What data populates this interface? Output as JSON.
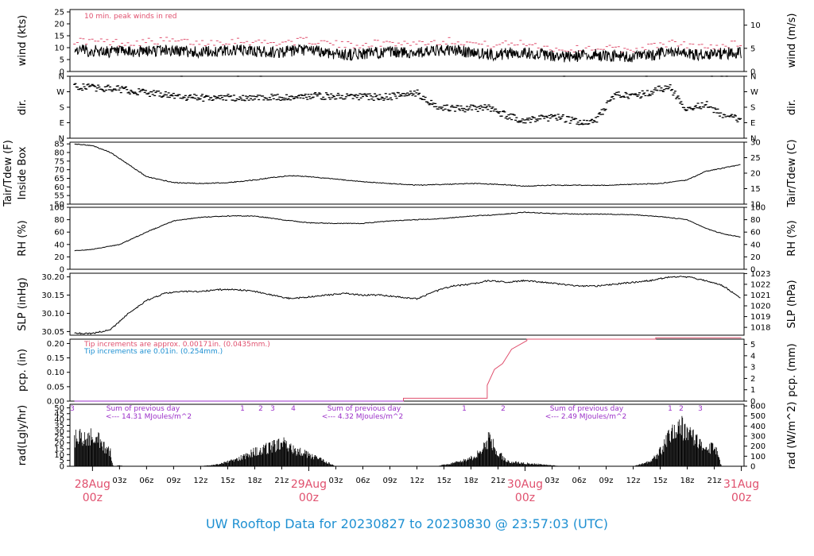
{
  "title": "UW Rooftop Data for 20230827  to  20230830 @ 23:57:03  (UTC)",
  "colors": {
    "line": "#000000",
    "peak": "#e0506e",
    "tip_alt": "#1e90d2",
    "rad_note": "#9b30c8",
    "date": "#e0506e",
    "title": "#1e90d2"
  },
  "x_axis": {
    "hour_labels": [
      "03z",
      "06z",
      "09z",
      "12z",
      "15z",
      "18z",
      "21z",
      "03z",
      "06z",
      "09z",
      "12z",
      "15z",
      "18z",
      "21z",
      "03z",
      "06z",
      "09z",
      "12z",
      "15z",
      "18z",
      "21z"
    ],
    "hour_offsets": [
      3,
      6,
      9,
      12,
      15,
      18,
      21,
      27,
      30,
      33,
      36,
      39,
      42,
      45,
      51,
      54,
      57,
      60,
      63,
      66,
      69
    ],
    "day_labels": [
      {
        "date": "28Aug",
        "time": "00z",
        "offset": 0
      },
      {
        "date": "29Aug",
        "time": "00z",
        "offset": 24
      },
      {
        "date": "30Aug",
        "time": "00z",
        "offset": 48
      },
      {
        "date": "31Aug",
        "time": "00z",
        "offset": 72
      }
    ]
  },
  "panels": {
    "wind": {
      "left_label": "wind (kts)",
      "right_label": "wind (m/s)",
      "left_ticks": [
        "0",
        "5",
        "10",
        "15",
        "20",
        "25"
      ],
      "left_range": [
        0,
        26
      ],
      "right_ticks": [
        "0",
        "5",
        "10"
      ],
      "note": "10 min. peak winds in red"
    },
    "dir": {
      "left_label": "dir.",
      "right_label": "dir.",
      "ticks": [
        "N",
        "E",
        "S",
        "W",
        "N"
      ]
    },
    "temp": {
      "left_label_1": "Tair/Tdew (F)",
      "left_label_2": "Inside Box",
      "right_label": "Tair/Tdew (C)",
      "left_ticks": [
        "50",
        "55",
        "60",
        "65",
        "70",
        "75",
        "80",
        "85"
      ],
      "left_range": [
        50,
        86
      ],
      "right_ticks": [
        "10",
        "15",
        "20",
        "25",
        "30"
      ]
    },
    "rh": {
      "left_label": "RH (%)",
      "right_label": "RH (%)",
      "ticks": [
        "0",
        "20",
        "40",
        "60",
        "80",
        "100"
      ],
      "range": [
        0,
        100
      ]
    },
    "slp": {
      "left_label": "SLP (inHg)",
      "right_label": "SLP (hPa)",
      "left_ticks": [
        "30.05",
        "30.10",
        "30.15",
        "30.20"
      ],
      "left_range": [
        30.04,
        30.21
      ],
      "right_ticks": [
        "1018",
        "1019",
        "1020",
        "1021",
        "1022",
        "1023"
      ]
    },
    "pcp": {
      "left_label": "pcp. (in)",
      "right_label": "pcp. (mm)",
      "left_ticks": [
        "0.00",
        "0.05",
        "0.10",
        "0.15",
        "0.20"
      ],
      "left_range": [
        0,
        0.215
      ],
      "right_ticks": [
        "0",
        "1",
        "2",
        "3",
        "4",
        "5"
      ],
      "note_1": "Tip increments are approx. 0.00171in. (0.0435mm.)",
      "note_2": "Tip increments are 0.01in. (0.254mm.)"
    },
    "rad": {
      "left_label": "rad(Lgly/hr)",
      "right_label": "rad (W/m^2)",
      "left_ticks": [
        "0",
        "5",
        "10",
        "15",
        "20",
        "25",
        "30",
        "35",
        "40",
        "45",
        "50"
      ],
      "left_range": [
        0,
        53
      ],
      "right_ticks": [
        "0",
        "100",
        "200",
        "300",
        "400",
        "500",
        "600"
      ],
      "sums": [
        {
          "label": "Sum of previous day",
          "value": "<--- 14.31 MJoules/m^2"
        },
        {
          "label": "Sum of previous day",
          "value": "<--- 4.32 MJoules/m^2"
        },
        {
          "label": "Sum of previous day",
          "value": "<--- 2.49 MJoules/m^2"
        }
      ],
      "markers": [
        "3",
        "1",
        "2",
        "3",
        "4",
        "1",
        "2",
        "1",
        "2",
        "3"
      ]
    }
  },
  "chart_data": [
    {
      "type": "line",
      "name": "wind",
      "x_unit": "hours since 28Aug 00z",
      "series": [
        {
          "name": "",
          "x": [
            -2,
            4,
            8,
            12,
            16,
            20,
            24,
            28,
            32,
            36,
            40,
            44,
            48,
            52,
            56,
            60,
            64,
            68,
            72
          ],
          "values": [
            9,
            8,
            9,
            8,
            9,
            8,
            9,
            7,
            8,
            8,
            9,
            7,
            8,
            6,
            7,
            6,
            8,
            7,
            8
          ]
        },
        {
          "name": "10 min. peak winds",
          "x": [
            -2,
            4,
            8,
            12,
            16,
            20,
            24,
            28,
            32,
            36,
            40,
            44,
            48,
            52,
            56,
            60,
            64,
            68,
            72
          ],
          "values": [
            13,
            12,
            13,
            12,
            13,
            12,
            13,
            11,
            12,
            12,
            13,
            11,
            12,
            9,
            10,
            9,
            12,
            10,
            12
          ]
        }
      ]
    },
    {
      "type": "scatter",
      "name": "dir",
      "x_unit": "hours since 28Aug 00z",
      "series": [
        {
          "name": "",
          "x": [
            -2,
            3,
            6,
            9,
            12,
            15,
            18,
            21,
            24,
            27,
            30,
            33,
            36,
            38,
            40,
            42,
            44,
            46,
            48,
            50,
            52,
            54,
            56,
            58,
            60,
            62,
            64,
            66,
            68,
            70,
            72
          ],
          "values": [
            300,
            285,
            265,
            245,
            235,
            235,
            240,
            240,
            245,
            245,
            240,
            240,
            265,
            190,
            170,
            175,
            175,
            130,
            100,
            115,
            120,
            90,
            110,
            260,
            240,
            270,
            300,
            160,
            200,
            130,
            110
          ]
        }
      ]
    },
    {
      "type": "line",
      "name": "temp",
      "x_unit": "hours since 28Aug 00z",
      "series": [
        {
          "name": "",
          "x": [
            -2,
            0,
            2,
            4,
            6,
            9,
            12,
            15,
            18,
            20,
            22,
            24,
            27,
            30,
            33,
            36,
            39,
            42,
            45,
            48,
            51,
            54,
            57,
            60,
            63,
            66,
            68,
            70,
            72
          ],
          "values": [
            85,
            84,
            80,
            73,
            66,
            62.5,
            62,
            62.5,
            64,
            65.5,
            66.5,
            66,
            64.5,
            63,
            62,
            61,
            61.5,
            62,
            61.5,
            60.5,
            61,
            61,
            61,
            61.5,
            62,
            64,
            69,
            71,
            73
          ]
        }
      ]
    },
    {
      "type": "line",
      "name": "rh",
      "x_unit": "hours since 28Aug 00z",
      "series": [
        {
          "name": "",
          "x": [
            -2,
            0,
            3,
            6,
            9,
            12,
            15,
            18,
            21,
            24,
            27,
            30,
            33,
            36,
            39,
            42,
            45,
            48,
            51,
            54,
            57,
            60,
            63,
            66,
            68,
            70,
            72
          ],
          "values": [
            30,
            32,
            40,
            60,
            78,
            84,
            86,
            86,
            80,
            75,
            74,
            74,
            78,
            80,
            82,
            86,
            88,
            92,
            90,
            89,
            89,
            88,
            85,
            80,
            66,
            57,
            52
          ]
        }
      ]
    },
    {
      "type": "line",
      "name": "slp",
      "x_unit": "hours since 28Aug 00z",
      "series": [
        {
          "name": "",
          "x": [
            -2,
            0,
            2,
            4,
            6,
            8,
            10,
            12,
            14,
            16,
            18,
            20,
            22,
            24,
            26,
            28,
            30,
            32,
            34,
            36,
            38,
            40,
            42,
            44,
            46,
            48,
            50,
            52,
            54,
            56,
            58,
            60,
            62,
            64,
            66,
            68,
            70,
            72
          ],
          "values": [
            30.045,
            30.045,
            30.055,
            30.1,
            30.135,
            30.155,
            30.16,
            30.16,
            30.165,
            30.165,
            30.16,
            30.15,
            30.14,
            30.145,
            30.15,
            30.155,
            30.15,
            30.15,
            30.145,
            30.14,
            30.16,
            30.175,
            30.18,
            30.19,
            30.185,
            30.19,
            30.185,
            30.18,
            30.175,
            30.175,
            30.18,
            30.185,
            30.19,
            30.2,
            30.2,
            30.19,
            30.175,
            30.14
          ]
        }
      ]
    },
    {
      "type": "line",
      "name": "pcp",
      "x_unit": "hours since 28Aug 00z",
      "series": [
        {
          "name": "",
          "x": [
            -2,
            34.5,
            34.5,
            43.8,
            43.8,
            44.6,
            45.5,
            46.1,
            46.5,
            48.2,
            48.2,
            62.5,
            62.5,
            72
          ],
          "values": [
            0,
            0,
            0.01,
            0.01,
            0.055,
            0.11,
            0.13,
            0.16,
            0.18,
            0.21,
            0.215,
            0.215,
            0.22,
            0.22
          ]
        }
      ]
    },
    {
      "type": "area",
      "name": "rad",
      "x_unit": "hours since 28Aug 00z",
      "series": [
        {
          "name": "",
          "x": [
            -2,
            -1,
            0,
            1,
            1.5,
            2,
            2.3,
            3,
            3.6,
            12,
            14,
            16,
            18,
            20,
            21,
            22,
            24,
            26,
            27,
            38,
            40,
            42,
            43,
            44,
            45,
            46,
            48,
            50,
            52,
            60,
            62,
            63,
            64,
            65,
            66,
            67,
            68,
            69,
            69.8
          ],
          "values": [
            28,
            32,
            31,
            24,
            18,
            14,
            0,
            1,
            0,
            0,
            2,
            7,
            15,
            20,
            24,
            18,
            12,
            4,
            0,
            0,
            3,
            8,
            14,
            28,
            14,
            5,
            3,
            2,
            0,
            0,
            5,
            15,
            30,
            45,
            35,
            30,
            15,
            22,
            0
          ]
        }
      ]
    }
  ]
}
